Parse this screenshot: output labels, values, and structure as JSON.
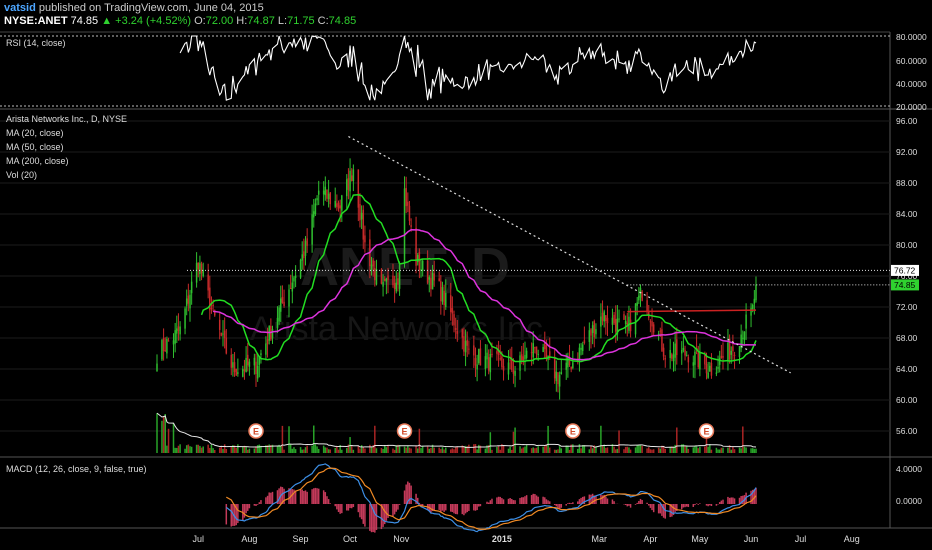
{
  "header": {
    "author": "vatsid",
    "published": "published on TradingView.com, June 04, 2015",
    "symbol": "NYSE:ANET",
    "last": "74.85",
    "change": "+3.24 (+4.52%)",
    "open_label": "O:",
    "open": "72.00",
    "high_label": "H:",
    "high": "74.87",
    "low_label": "L:",
    "low": "71.75",
    "close_label": "C:",
    "close": "74.85"
  },
  "watermark": "ANET, D",
  "watermark_sub": "Arista Networks Inc.",
  "colors": {
    "background": "#000000",
    "up": "#2fbf2f",
    "down": "#c82a2a",
    "ma20": "#22dd22",
    "ma50": "#dd33dd",
    "ma200": "#cc2222",
    "rsi": "#ffffff",
    "macd": "#3d8fe6",
    "signal": "#f08a24",
    "grid": "#1c1c1c",
    "price_tag": "#2fd12f"
  },
  "rsi_panel": {
    "label": "RSI (14, close)",
    "ticks": [
      "80.0000",
      "60.0000",
      "40.0000",
      "20.0000"
    ]
  },
  "price_panel": {
    "labels": [
      "Arista Networks Inc., D, NYSE",
      "MA (20, close)",
      "MA (50, close)",
      "MA (200, close)",
      "Vol (20)"
    ],
    "ticks": [
      "96.00",
      "92.00",
      "88.00",
      "84.00",
      "80.00",
      "76.00",
      "72.00",
      "68.00",
      "64.00",
      "60.00",
      "56.00"
    ],
    "resistance_tag": "76.72",
    "last_price_tag": "74.85",
    "earnings_marker": "E"
  },
  "macd_panel": {
    "label": "MACD (12, 26, close, 9, false, true)",
    "ticks": [
      "4.0000",
      "0.0000"
    ]
  },
  "x_axis": [
    "Jul",
    "Aug",
    "Sep",
    "Oct",
    "Nov",
    "2015",
    "Mar",
    "Apr",
    "May",
    "Jun",
    "Jul",
    "Aug"
  ],
  "chart_data": {
    "type": "candlestick",
    "title": "Arista Networks Inc., D, NYSE",
    "y_range": [
      54,
      98
    ],
    "resistance_level": 76.72,
    "last_close": 74.85,
    "anchors_date_close": [
      [
        "2014-06-06",
        66
      ],
      [
        "2014-06-20",
        69
      ],
      [
        "2014-07-01",
        78
      ],
      [
        "2014-07-10",
        71
      ],
      [
        "2014-07-22",
        64
      ],
      [
        "2014-08-05",
        64.5
      ],
      [
        "2014-08-22",
        73
      ],
      [
        "2014-09-05",
        80
      ],
      [
        "2014-09-12",
        87
      ],
      [
        "2014-09-25",
        85
      ],
      [
        "2014-10-03",
        90
      ],
      [
        "2014-10-10",
        80
      ],
      [
        "2014-10-20",
        74
      ],
      [
        "2014-10-30",
        76
      ],
      [
        "2014-11-03",
        87
      ],
      [
        "2014-11-10",
        78
      ],
      [
        "2014-11-25",
        74
      ],
      [
        "2014-12-12",
        66
      ],
      [
        "2014-12-24",
        65
      ],
      [
        "2015-01-09",
        64
      ],
      [
        "2015-01-21",
        67
      ],
      [
        "2015-02-04",
        63
      ],
      [
        "2015-02-13",
        65
      ],
      [
        "2015-03-03",
        71
      ],
      [
        "2015-03-18",
        69
      ],
      [
        "2015-03-27",
        74
      ],
      [
        "2015-04-10",
        66
      ],
      [
        "2015-04-24",
        66
      ],
      [
        "2015-05-08",
        64
      ],
      [
        "2015-05-22",
        67
      ],
      [
        "2015-06-02",
        71.6
      ],
      [
        "2015-06-04",
        74.85
      ]
    ],
    "earnings_dates": [
      "2014-08-05",
      "2014-11-03",
      "2015-02-13",
      "2015-05-05"
    ],
    "trendline": {
      "start": [
        "2014-09-30",
        94
      ],
      "end": [
        "2015-06-25",
        63.5
      ]
    },
    "ma_200_level": [
      [
        "2015-03-18",
        71.4
      ],
      [
        "2015-06-04",
        71.6
      ]
    ]
  }
}
